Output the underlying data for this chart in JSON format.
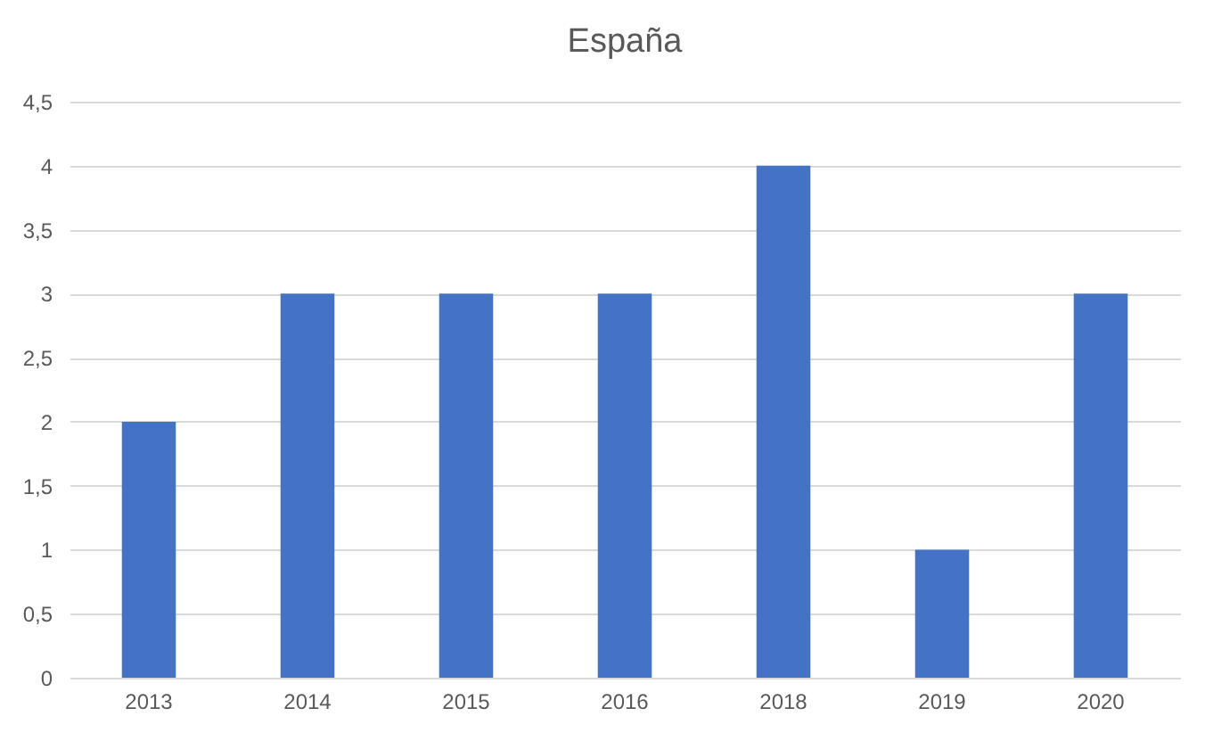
{
  "chart_data": {
    "type": "bar",
    "title": "España",
    "categories": [
      "2013",
      "2014",
      "2015",
      "2016",
      "2018",
      "2019",
      "2020"
    ],
    "values": [
      2,
      3,
      3,
      3,
      4,
      1,
      3
    ],
    "color": "#4472c4",
    "ylim": [
      0,
      4.5
    ],
    "yticks": [
      0,
      {
        "value": 0.5,
        "label": "0,5"
      },
      1,
      {
        "value": 1.5,
        "label": "1,5"
      },
      2,
      {
        "value": 2.5,
        "label": "2,5"
      },
      3,
      {
        "value": 3.5,
        "label": "3,5"
      },
      4,
      {
        "value": 4.5,
        "label": "4,5"
      }
    ],
    "grid": "y"
  }
}
